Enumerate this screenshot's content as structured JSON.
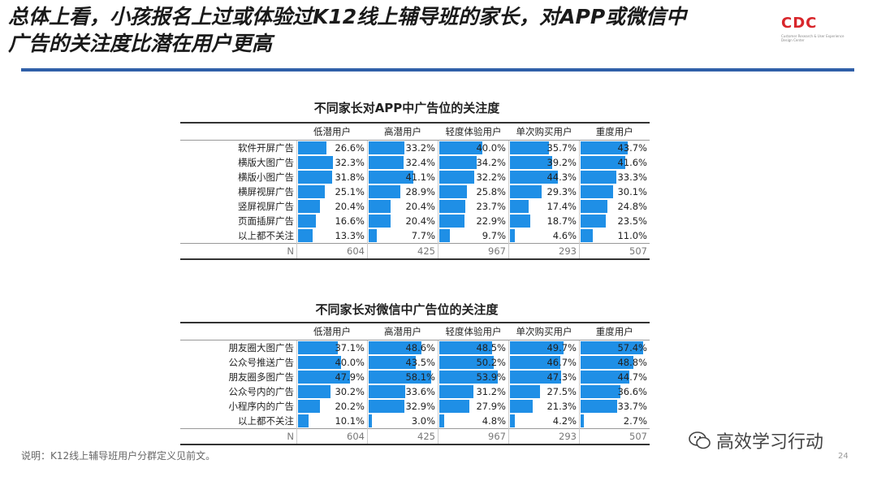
{
  "header": {
    "title_line1": "总体上看，小孩报名上过或体验过K12线上辅导班的家长，对APP或微信中",
    "title_line2": "广告的关注度比潜在用户更高",
    "logo_text": "CDC",
    "logo_sub": "Customer Research & User Experience Design Center"
  },
  "colors": {
    "bar": "#1f8fe6",
    "rule": "#2f5fa8",
    "logo": "#d8262b"
  },
  "columns": [
    "低潜用户",
    "高潜用户",
    "轻度体验用户",
    "单次购买用户",
    "重度用户"
  ],
  "table1": {
    "title": "不同家长对APP中广告位的关注度",
    "rows": [
      {
        "label": "软件开屏广告",
        "values": [
          "26.6%",
          "33.2%",
          "40.0%",
          "35.7%",
          "43.7%"
        ],
        "pct": [
          26.6,
          33.2,
          40.0,
          35.7,
          43.7
        ]
      },
      {
        "label": "横版大图广告",
        "values": [
          "32.3%",
          "32.4%",
          "34.2%",
          "39.2%",
          "41.6%"
        ],
        "pct": [
          32.3,
          32.4,
          34.2,
          39.2,
          41.6
        ]
      },
      {
        "label": "横版小图广告",
        "values": [
          "31.8%",
          "41.1%",
          "32.2%",
          "44.3%",
          "33.3%"
        ],
        "pct": [
          31.8,
          41.1,
          32.2,
          44.3,
          33.3
        ]
      },
      {
        "label": "横屏视屏广告",
        "values": [
          "25.1%",
          "28.9%",
          "25.8%",
          "29.3%",
          "30.1%"
        ],
        "pct": [
          25.1,
          28.9,
          25.8,
          29.3,
          30.1
        ]
      },
      {
        "label": "竖屏视屏广告",
        "values": [
          "20.4%",
          "20.4%",
          "23.7%",
          "17.4%",
          "24.8%"
        ],
        "pct": [
          20.4,
          20.4,
          23.7,
          17.4,
          24.8
        ]
      },
      {
        "label": "页面插屏广告",
        "values": [
          "16.6%",
          "20.4%",
          "22.9%",
          "18.7%",
          "23.5%"
        ],
        "pct": [
          16.6,
          20.4,
          22.9,
          18.7,
          23.5
        ]
      },
      {
        "label": "以上都不关注",
        "values": [
          "13.3%",
          "7.7%",
          "9.7%",
          "4.6%",
          "11.0%"
        ],
        "pct": [
          13.3,
          7.7,
          9.7,
          4.6,
          11.0
        ]
      }
    ],
    "n_label": "N",
    "n_values": [
      "604",
      "425",
      "967",
      "293",
      "507"
    ]
  },
  "table2": {
    "title": "不同家长对微信中广告位的关注度",
    "rows": [
      {
        "label": "朋友圈大图广告",
        "values": [
          "37.1%",
          "48.6%",
          "48.5%",
          "49.7%",
          "57.4%"
        ],
        "pct": [
          37.1,
          48.6,
          48.5,
          49.7,
          57.4
        ]
      },
      {
        "label": "公众号推送广告",
        "values": [
          "40.0%",
          "43.5%",
          "50.2%",
          "46.7%",
          "48.8%"
        ],
        "pct": [
          40.0,
          43.5,
          50.2,
          46.7,
          48.8
        ]
      },
      {
        "label": "朋友圈多图广告",
        "values": [
          "47.9%",
          "58.1%",
          "53.9%",
          "47.3%",
          "44.7%"
        ],
        "pct": [
          47.9,
          58.1,
          53.9,
          47.3,
          44.7
        ]
      },
      {
        "label": "公众号内的广告",
        "values": [
          "30.2%",
          "33.6%",
          "31.2%",
          "27.5%",
          "36.6%"
        ],
        "pct": [
          30.2,
          33.6,
          31.2,
          27.5,
          36.6
        ]
      },
      {
        "label": "小程序内的广告",
        "values": [
          "20.2%",
          "32.9%",
          "27.9%",
          "21.3%",
          "33.7%"
        ],
        "pct": [
          20.2,
          32.9,
          27.9,
          21.3,
          33.7
        ]
      },
      {
        "label": "以上都不关注",
        "values": [
          "10.1%",
          "3.0%",
          "4.8%",
          "4.2%",
          "2.7%"
        ],
        "pct": [
          10.1,
          3.0,
          4.8,
          4.2,
          2.7
        ]
      }
    ],
    "n_label": "N",
    "n_values": [
      "604",
      "425",
      "967",
      "293",
      "507"
    ]
  },
  "footer": {
    "note": "说明：K12线上辅导班用户分群定义见前文。",
    "page": "24",
    "watermark": "高效学习行动"
  }
}
